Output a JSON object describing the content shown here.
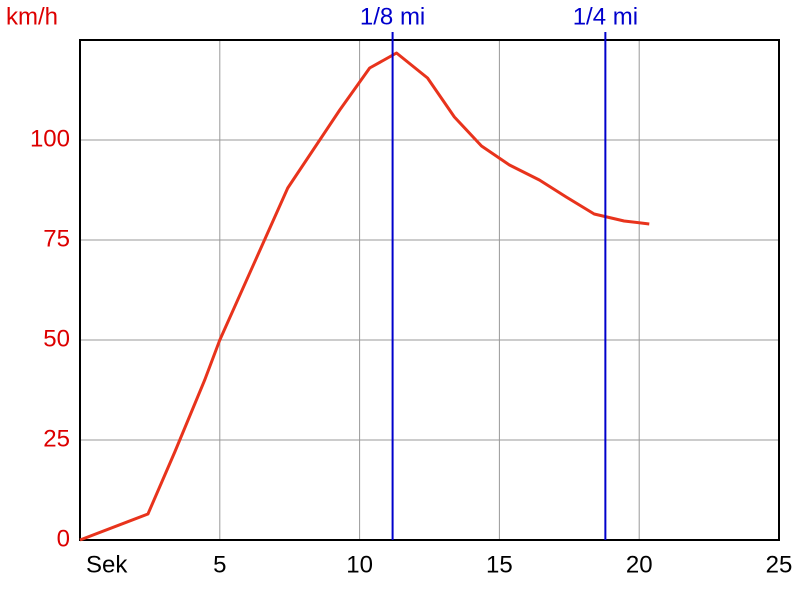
{
  "chart_data": {
    "type": "line",
    "y_label": "km/h",
    "x": [
      0,
      2.43,
      3.39,
      4.46,
      5,
      7.43,
      9.29,
      10.36,
      11.32,
      12.43,
      13.39,
      14.36,
      15.36,
      16.43,
      17.39,
      18.39,
      19.46,
      20.36
    ],
    "values": [
      0,
      6.5,
      22,
      40,
      50,
      88,
      107.5,
      118,
      121.75,
      115.5,
      105.75,
      98.5,
      93.75,
      90,
      85.75,
      81.5,
      79.75,
      79
    ],
    "color": "#e8331c",
    "xlim": [
      0,
      25
    ],
    "xticks": [
      {
        "value": 0,
        "label": "Sek"
      },
      5,
      10,
      15,
      20,
      25
    ],
    "ylim": [
      0,
      125
    ],
    "yticks": [
      0,
      25,
      50,
      75,
      100
    ],
    "grid": true,
    "y_tick_color": "#dd0000",
    "markers": [
      {
        "label": "1/8 mi",
        "x": 11.18
      },
      {
        "label": "1/4 mi",
        "x": 18.79
      }
    ],
    "marker_color": "#0000cc"
  }
}
